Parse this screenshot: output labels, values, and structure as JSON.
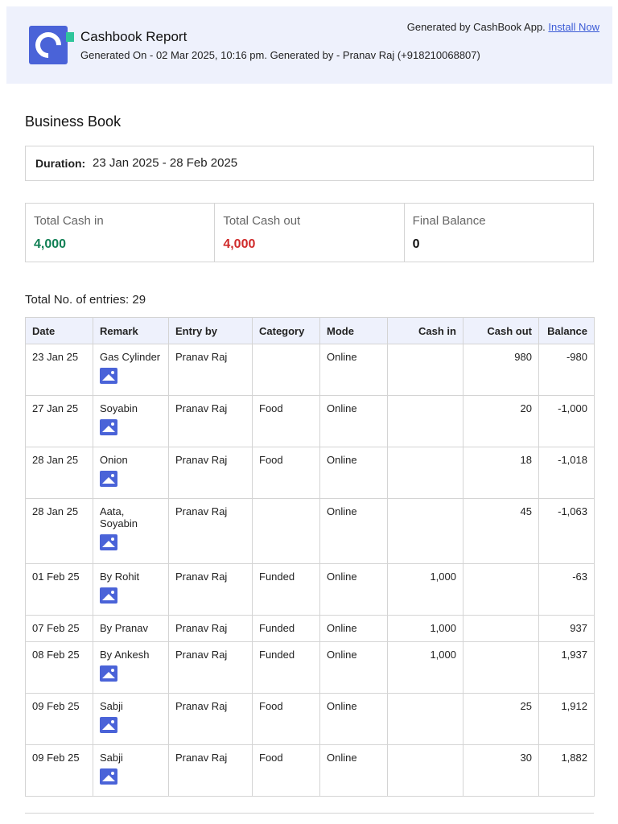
{
  "header": {
    "title": "Cashbook Report",
    "subtitle": "Generated On - 02 Mar 2025, 10:16 pm. Generated by - Pranav Raj (+918210068807)",
    "generated_by": "Generated by CashBook App.",
    "install_link": "Install Now"
  },
  "book_title": "Business Book",
  "duration": {
    "label": "Duration:",
    "value": "23 Jan 2025 - 28 Feb 2025"
  },
  "summary": {
    "cash_in_label": "Total Cash in",
    "cash_in_value": "4,000",
    "cash_out_label": "Total Cash out",
    "cash_out_value": "4,000",
    "balance_label": "Final Balance",
    "balance_value": "0"
  },
  "entries_text": "Total No. of entries: 29",
  "table": {
    "headers": [
      "Date",
      "Remark",
      "Entry by",
      "Category",
      "Mode",
      "Cash in",
      "Cash out",
      "Balance"
    ],
    "rows": [
      {
        "date": "23 Jan 25",
        "remark": "Gas Cylinder",
        "entry_by": "Pranav Raj",
        "category": "",
        "mode": "Online",
        "cash_in": "",
        "cash_out": "980",
        "balance": "-980",
        "has_image": true
      },
      {
        "date": "27 Jan 25",
        "remark": "Soyabin",
        "entry_by": "Pranav Raj",
        "category": "Food",
        "mode": "Online",
        "cash_in": "",
        "cash_out": "20",
        "balance": "-1,000",
        "has_image": true
      },
      {
        "date": "28 Jan 25",
        "remark": "Onion",
        "entry_by": "Pranav Raj",
        "category": "Food",
        "mode": "Online",
        "cash_in": "",
        "cash_out": "18",
        "balance": "-1,018",
        "has_image": true
      },
      {
        "date": "28 Jan 25",
        "remark": "Aata, Soyabin",
        "entry_by": "Pranav Raj",
        "category": "",
        "mode": "Online",
        "cash_in": "",
        "cash_out": "45",
        "balance": "-1,063",
        "has_image": true
      },
      {
        "date": "01 Feb 25",
        "remark": "By Rohit",
        "entry_by": "Pranav Raj",
        "category": "Funded",
        "mode": "Online",
        "cash_in": "1,000",
        "cash_out": "",
        "balance": "-63",
        "has_image": true
      },
      {
        "date": "07 Feb 25",
        "remark": "By Pranav",
        "entry_by": "Pranav Raj",
        "category": "Funded",
        "mode": "Online",
        "cash_in": "1,000",
        "cash_out": "",
        "balance": "937",
        "has_image": false
      },
      {
        "date": "08 Feb 25",
        "remark": "By Ankesh",
        "entry_by": "Pranav Raj",
        "category": "Funded",
        "mode": "Online",
        "cash_in": "1,000",
        "cash_out": "",
        "balance": "1,937",
        "has_image": true
      },
      {
        "date": "09 Feb 25",
        "remark": "Sabji",
        "entry_by": "Pranav Raj",
        "category": "Food",
        "mode": "Online",
        "cash_in": "",
        "cash_out": "25",
        "balance": "1,912",
        "has_image": true
      },
      {
        "date": "09 Feb 25",
        "remark": "Sabji",
        "entry_by": "Pranav Raj",
        "category": "Food",
        "mode": "Online",
        "cash_in": "",
        "cash_out": "30",
        "balance": "1,882",
        "has_image": true
      }
    ]
  },
  "colors": {
    "accent": "#4a63d8",
    "cash_in": "#118055",
    "cash_out": "#d02b2b",
    "header_bg": "#eef1fc"
  }
}
